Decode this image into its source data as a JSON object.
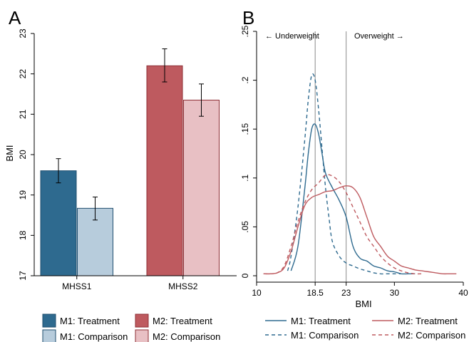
{
  "chart_data": [
    {
      "panel_label": "A",
      "type": "bar",
      "ylabel": "BMI",
      "ylim": [
        17,
        23
      ],
      "yticks": [
        "17",
        "18",
        "19",
        "20",
        "21",
        "22",
        "23"
      ],
      "categories": [
        "MHSS1",
        "MHSS2"
      ],
      "series": [
        {
          "name": "M1: Treatment",
          "color": "#2e6a8f",
          "group": 0,
          "value": 19.6,
          "ci": [
            19.3,
            19.9
          ]
        },
        {
          "name": "M1: Comparison",
          "color": "#b7ccdc",
          "group": 0,
          "value": 18.67,
          "ci": [
            18.38,
            18.95
          ]
        },
        {
          "name": "M2: Treatment",
          "color": "#be5a5f",
          "group": 1,
          "value": 22.2,
          "ci": [
            21.8,
            22.62
          ]
        },
        {
          "name": "M2: Comparison",
          "color": "#e8c0c4",
          "group": 1,
          "value": 21.35,
          "ci": [
            20.95,
            21.75
          ]
        }
      ],
      "legend_position": "bottom",
      "grid": false
    },
    {
      "panel_label": "B",
      "type": "line",
      "xlabel": "BMI",
      "xlim": [
        10,
        40
      ],
      "ylim": [
        0,
        0.25
      ],
      "xticks": [
        "10",
        "18.5",
        "23",
        "30",
        "40"
      ],
      "yticks": [
        "0",
        ".05",
        ".1",
        ".15",
        ".2",
        ".25"
      ],
      "reference_lines": [
        18.5,
        23
      ],
      "annotations": [
        "← Underweight",
        "Overweight →"
      ],
      "series": [
        {
          "name": "M1: Treatment",
          "color": "#2e6a8f",
          "dash": false,
          "x": [
            15,
            16,
            17,
            17.5,
            18,
            18.5,
            19,
            19.5,
            20,
            21,
            22,
            23,
            24,
            25,
            26,
            27,
            28,
            29,
            30,
            31,
            32,
            33
          ],
          "y": [
            0.005,
            0.03,
            0.09,
            0.125,
            0.15,
            0.155,
            0.145,
            0.125,
            0.105,
            0.09,
            0.077,
            0.06,
            0.03,
            0.018,
            0.015,
            0.01,
            0.008,
            0.005,
            0.004,
            0.002,
            0.002,
            0.002
          ]
        },
        {
          "name": "M1: Comparison",
          "color": "#2e6a8f",
          "dash": true,
          "x": [
            14.5,
            15,
            16,
            17,
            17.5,
            18,
            18.5,
            19,
            19.5,
            20,
            20.5,
            21,
            22,
            23,
            24,
            25,
            26,
            27,
            28,
            29,
            30,
            31
          ],
          "y": [
            0.005,
            0.02,
            0.07,
            0.14,
            0.18,
            0.205,
            0.2,
            0.17,
            0.13,
            0.09,
            0.06,
            0.035,
            0.02,
            0.013,
            0.01,
            0.007,
            0.005,
            0.003,
            0.002,
            0.002,
            0.002,
            0.002
          ]
        },
        {
          "name": "M2: Treatment",
          "color": "#be5a5f",
          "dash": false,
          "x": [
            11,
            12,
            13,
            14,
            15,
            16,
            17,
            18,
            19,
            20,
            21,
            22,
            23,
            24,
            25,
            26,
            27,
            28,
            29,
            30,
            31,
            32,
            33,
            34,
            35,
            36,
            37,
            38,
            39
          ],
          "y": [
            0.002,
            0.002,
            0.003,
            0.008,
            0.025,
            0.05,
            0.072,
            0.08,
            0.083,
            0.086,
            0.087,
            0.09,
            0.092,
            0.09,
            0.08,
            0.06,
            0.04,
            0.03,
            0.02,
            0.015,
            0.01,
            0.008,
            0.006,
            0.005,
            0.004,
            0.003,
            0.002,
            0.002,
            0.002
          ]
        },
        {
          "name": "M2: Comparison",
          "color": "#be5a5f",
          "dash": true,
          "x": [
            11,
            12,
            13,
            14,
            15,
            16,
            17,
            18,
            19,
            20,
            21,
            22,
            23,
            24,
            25,
            26,
            27,
            28,
            29,
            30,
            31,
            32,
            33,
            34
          ],
          "y": [
            0.002,
            0.002,
            0.003,
            0.01,
            0.03,
            0.055,
            0.075,
            0.088,
            0.095,
            0.103,
            0.102,
            0.096,
            0.085,
            0.07,
            0.055,
            0.04,
            0.03,
            0.02,
            0.013,
            0.008,
            0.005,
            0.003,
            0.002,
            0.002
          ]
        }
      ],
      "legend_position": "bottom",
      "grid": false
    }
  ]
}
